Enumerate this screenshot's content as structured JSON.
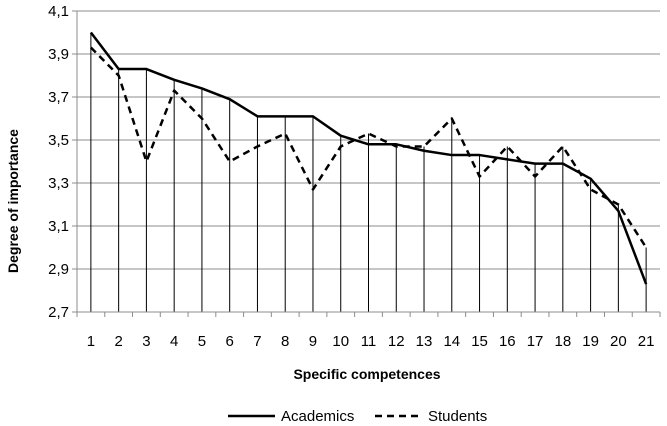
{
  "chart_data": {
    "type": "line",
    "xlabel": "Specific competences",
    "ylabel": "Degree of importance",
    "x": [
      "1",
      "2",
      "3",
      "4",
      "5",
      "6",
      "7",
      "8",
      "9",
      "10",
      "11",
      "12",
      "13",
      "14",
      "15",
      "16",
      "17",
      "18",
      "19",
      "20",
      "21"
    ],
    "ylim": [
      2.7,
      4.1
    ],
    "yticks": [
      "2,7",
      "2,9",
      "3,1",
      "3,3",
      "3,5",
      "3,7",
      "3,9",
      "4,1"
    ],
    "grid": "horizontal gridlines plus vertical drop lines at each category",
    "legend_position": "bottom",
    "series": [
      {
        "name": "Academics",
        "style": "solid",
        "color": "#000000",
        "values": [
          4.0,
          3.83,
          3.83,
          3.78,
          3.74,
          3.69,
          3.61,
          3.61,
          3.61,
          3.52,
          3.48,
          3.48,
          3.45,
          3.43,
          3.43,
          3.41,
          3.39,
          3.39,
          3.32,
          3.17,
          2.83
        ]
      },
      {
        "name": "Students",
        "style": "dashed",
        "color": "#000000",
        "values": [
          3.93,
          3.8,
          3.4,
          3.73,
          3.6,
          3.4,
          3.47,
          3.53,
          3.27,
          3.47,
          3.53,
          3.47,
          3.47,
          3.6,
          3.33,
          3.47,
          3.33,
          3.47,
          3.27,
          3.2,
          3.0
        ]
      }
    ]
  }
}
